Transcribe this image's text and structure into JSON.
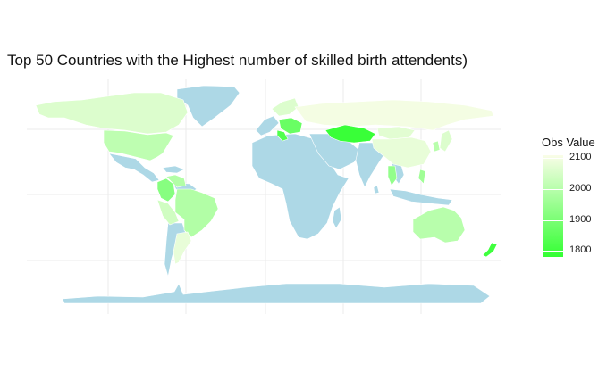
{
  "title": "Top 50 Countries with the Highest number of skilled birth attendents)",
  "legend": {
    "title": "Obs Value",
    "ticks": [
      "2100",
      "2000",
      "1900",
      "1800"
    ],
    "range": [
      1780,
      2110
    ],
    "colors": {
      "low": "#33ff33",
      "high": "#fafde8"
    }
  },
  "colors": {
    "default_land": "#add8e6",
    "grid": "#ebebeb",
    "background": "#ffffff",
    "border": "#ffffff"
  },
  "chart_data": {
    "type": "choropleth-map",
    "value_label": "Obs Value",
    "grid": true,
    "legend_position": "right",
    "regions": [
      {
        "name": "Canada",
        "value": 2060
      },
      {
        "name": "United States",
        "value": 2010
      },
      {
        "name": "Colombia",
        "value": 1920
      },
      {
        "name": "Venezuela",
        "value": 1990
      },
      {
        "name": "Brazil",
        "value": 1990
      },
      {
        "name": "Peru",
        "value": 2040
      },
      {
        "name": "Argentina",
        "value": 2080
      },
      {
        "name": "Russia",
        "value": 2100
      },
      {
        "name": "Kazakhstan",
        "value": 1790
      },
      {
        "name": "Italy",
        "value": 1830
      },
      {
        "name": "Eastern Europe",
        "value": 1870
      },
      {
        "name": "Scandinavia",
        "value": 2060
      },
      {
        "name": "Mongolia",
        "value": 2070
      },
      {
        "name": "China",
        "value": 2080
      },
      {
        "name": "Japan",
        "value": 2060
      },
      {
        "name": "Korea",
        "value": 2000
      },
      {
        "name": "Thailand",
        "value": 1940
      },
      {
        "name": "Philippines",
        "value": 1960
      },
      {
        "name": "Australia",
        "value": 2000
      },
      {
        "name": "New Zealand",
        "value": 1800
      }
    ]
  }
}
